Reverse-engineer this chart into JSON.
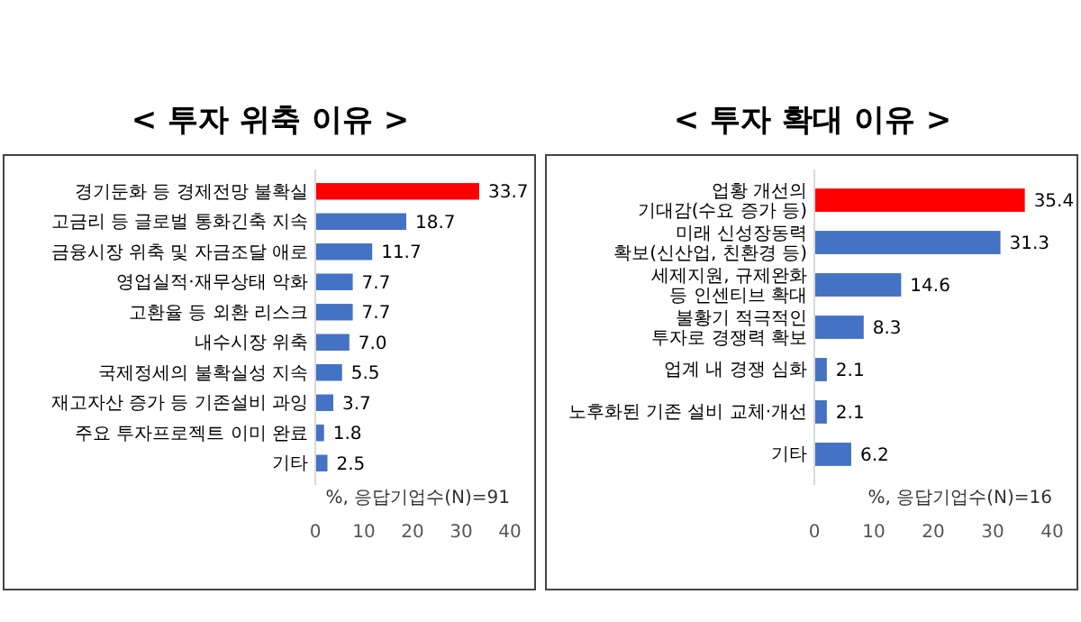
{
  "chart_data": [
    {
      "type": "bar",
      "orientation": "horizontal",
      "title": "< 투자 위축 이유 >",
      "categories": [
        "경기둔화 등 경제전망 불확실",
        "고금리 등 글로벌 통화긴축 지속",
        "금융시장 위축 및 자금조달 애로",
        "영업실적·재무상태 악화",
        "고환율 등 외환 리스크",
        "내수시장 위축",
        "국제정세의 불확실성 지속",
        "재고자산 증가 등 기존설비 과잉",
        "주요 투자프로젝트 이미 완료",
        "기타"
      ],
      "values": [
        33.7,
        18.7,
        11.7,
        7.7,
        7.7,
        7.0,
        5.5,
        3.7,
        1.8,
        2.5
      ],
      "value_labels": [
        "33.7",
        "18.7",
        "11.7",
        "7.7",
        "7.7",
        "7.0",
        "5.5",
        "3.7",
        "1.8",
        "2.5"
      ],
      "colors": [
        "#ff0000",
        "#4472c4",
        "#4472c4",
        "#4472c4",
        "#4472c4",
        "#4472c4",
        "#4472c4",
        "#4472c4",
        "#4472c4",
        "#4472c4"
      ],
      "xlim": [
        0,
        40
      ],
      "xticks": [
        0,
        10,
        20,
        30,
        40
      ],
      "annotations": [
        "%, 응답기업수(N)=91"
      ]
    },
    {
      "type": "bar",
      "orientation": "horizontal",
      "title": "< 투자 확대 이유 >",
      "categories": [
        "업황 개선의 기대감(수요 증가 등)",
        "미래 신성장동력 확보(신산업, 친환경 등)",
        "세제지원, 규제완화 등 인센티브 확대",
        "불황기 적극적인 투자로 경쟁력 확보",
        "업계 내 경쟁 심화",
        "노후화된 기존 설비 교체·개선",
        "기타"
      ],
      "values": [
        35.4,
        31.3,
        14.6,
        8.3,
        2.1,
        2.1,
        6.2
      ],
      "value_labels": [
        "35.4",
        "31.3",
        "14.6",
        "8.3",
        "2.1",
        "2.1",
        "6.2"
      ],
      "colors": [
        "#ff0000",
        "#4472c4",
        "#4472c4",
        "#4472c4",
        "#4472c4",
        "#4472c4",
        "#4472c4"
      ],
      "xlim": [
        0,
        40
      ],
      "xticks": [
        0,
        10,
        20,
        30,
        40
      ],
      "annotations": [
        "%, 응답기업수(N)=16"
      ]
    }
  ]
}
